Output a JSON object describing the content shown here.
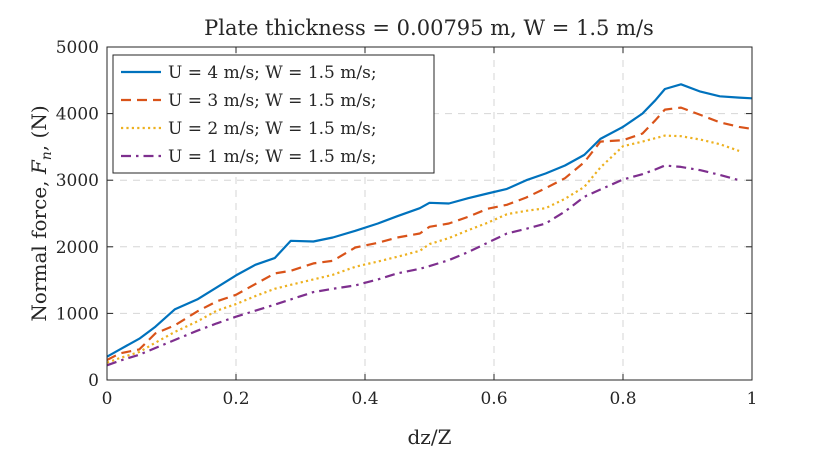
{
  "chart_data": {
    "type": "line",
    "title": "Plate thickness = 0.00795 m, W = 1.5 m/s",
    "xlabel": "dz/Z",
    "ylabel_main": "Normal force, ",
    "ylabel_sym": "F",
    "ylabel_sub": "n",
    "ylabel_unit": ", (N)",
    "xlim": [
      0,
      1
    ],
    "ylim": [
      0,
      5000
    ],
    "xticks": [
      0,
      0.2,
      0.4,
      0.6,
      0.8,
      1
    ],
    "xtick_labels": [
      "0",
      "0.2",
      "0.4",
      "0.6",
      "0.8",
      "1"
    ],
    "yticks": [
      0,
      1000,
      2000,
      3000,
      4000,
      5000
    ],
    "ytick_labels": [
      "0",
      "1000",
      "2000",
      "3000",
      "4000",
      "5000"
    ],
    "grid": true,
    "legend_position": "top-left",
    "series": [
      {
        "name": "U = 4 m/s; W = 1.5 m/s;",
        "color": "#0072BD",
        "style": "solid",
        "x": [
          0,
          0.02,
          0.05,
          0.075,
          0.105,
          0.14,
          0.17,
          0.2,
          0.23,
          0.26,
          0.285,
          0.32,
          0.35,
          0.385,
          0.42,
          0.45,
          0.485,
          0.5,
          0.53,
          0.56,
          0.59,
          0.62,
          0.65,
          0.68,
          0.71,
          0.74,
          0.765,
          0.8,
          0.83,
          0.85,
          0.865,
          0.89,
          0.92,
          0.95,
          0.98,
          1.0
        ],
        "y": [
          350,
          460,
          620,
          800,
          1060,
          1210,
          1390,
          1570,
          1730,
          1830,
          2090,
          2080,
          2140,
          2240,
          2350,
          2460,
          2580,
          2660,
          2650,
          2730,
          2800,
          2870,
          3000,
          3100,
          3220,
          3380,
          3620,
          3800,
          4000,
          4200,
          4370,
          4440,
          4330,
          4260,
          4240,
          4230
        ]
      },
      {
        "name": "U = 3 m/s; W = 1.5 m/s;",
        "color": "#D95319",
        "style": "dashed",
        "x": [
          0,
          0.02,
          0.05,
          0.075,
          0.105,
          0.14,
          0.17,
          0.2,
          0.23,
          0.26,
          0.285,
          0.32,
          0.35,
          0.385,
          0.42,
          0.45,
          0.485,
          0.5,
          0.53,
          0.56,
          0.59,
          0.62,
          0.65,
          0.68,
          0.71,
          0.74,
          0.765,
          0.8,
          0.83,
          0.85,
          0.865,
          0.89,
          0.92,
          0.95,
          0.98,
          1.0
        ],
        "y": [
          300,
          400,
          460,
          700,
          820,
          1030,
          1180,
          1280,
          1440,
          1600,
          1640,
          1750,
          1790,
          1990,
          2060,
          2140,
          2200,
          2300,
          2350,
          2450,
          2570,
          2630,
          2740,
          2880,
          3030,
          3270,
          3580,
          3600,
          3700,
          3900,
          4060,
          4090,
          3980,
          3870,
          3800,
          3770
        ]
      },
      {
        "name": "U = 2 m/s; W = 1.5 m/s;",
        "color": "#EDB120",
        "style": "dotted",
        "x": [
          0,
          0.02,
          0.05,
          0.075,
          0.105,
          0.14,
          0.17,
          0.2,
          0.23,
          0.26,
          0.285,
          0.32,
          0.35,
          0.385,
          0.42,
          0.45,
          0.485,
          0.5,
          0.53,
          0.56,
          0.59,
          0.62,
          0.65,
          0.68,
          0.71,
          0.74,
          0.765,
          0.8,
          0.83,
          0.85,
          0.865,
          0.89,
          0.92,
          0.95,
          0.98
        ],
        "y": [
          260,
          330,
          420,
          560,
          720,
          880,
          1040,
          1140,
          1260,
          1370,
          1430,
          1510,
          1580,
          1700,
          1780,
          1850,
          1940,
          2040,
          2130,
          2250,
          2360,
          2490,
          2540,
          2580,
          2720,
          2900,
          3190,
          3510,
          3580,
          3630,
          3670,
          3660,
          3610,
          3540,
          3440
        ]
      },
      {
        "name": "U = 1 m/s; W = 1.5 m/s;",
        "color": "#7E2F8E",
        "style": "dashdot",
        "x": [
          0,
          0.02,
          0.05,
          0.075,
          0.105,
          0.14,
          0.17,
          0.2,
          0.23,
          0.26,
          0.285,
          0.32,
          0.35,
          0.385,
          0.42,
          0.45,
          0.485,
          0.5,
          0.53,
          0.56,
          0.59,
          0.62,
          0.65,
          0.68,
          0.71,
          0.74,
          0.765,
          0.8,
          0.83,
          0.85,
          0.865,
          0.89,
          0.92,
          0.95,
          0.98
        ],
        "y": [
          220,
          290,
          380,
          480,
          600,
          740,
          850,
          950,
          1040,
          1130,
          1210,
          1320,
          1370,
          1420,
          1510,
          1600,
          1670,
          1710,
          1800,
          1920,
          2060,
          2200,
          2270,
          2350,
          2530,
          2750,
          2860,
          3010,
          3090,
          3160,
          3220,
          3200,
          3150,
          3080,
          3000
        ]
      }
    ]
  }
}
